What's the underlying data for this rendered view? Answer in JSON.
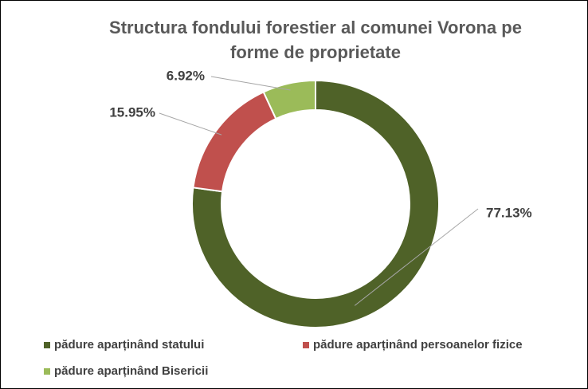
{
  "chart_data": {
    "type": "pie",
    "donut": true,
    "title": "Structura fondului forestier al comunei Vorona pe forme de proprietate",
    "categories": [
      "pădure aparținând statului",
      "pădure aparținând persoanelor fizice",
      "pădure aparținând Bisericii"
    ],
    "values": [
      77.13,
      15.95,
      6.92
    ],
    "value_labels": [
      "77.13%",
      "15.95%",
      "6.92%"
    ],
    "colors": [
      "#4f6228",
      "#c0504d",
      "#9bbb59"
    ],
    "legend": "bottom"
  }
}
